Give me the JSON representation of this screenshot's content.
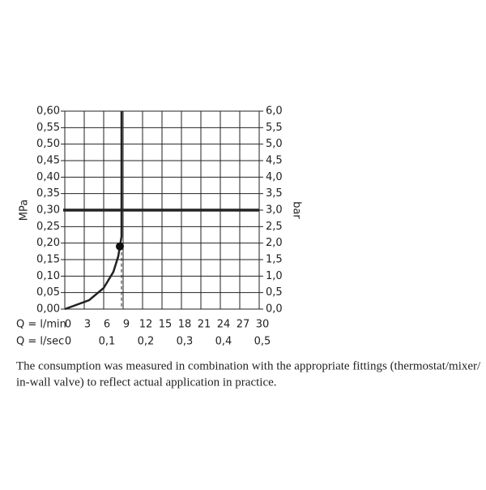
{
  "chart_data": {
    "type": "line",
    "y_label": "MPa",
    "y2_label": "bar",
    "x_label": "Q = l/min",
    "x2_label": "Q = l/sec",
    "xlim": [
      0,
      30
    ],
    "xticks": [
      0,
      3,
      6,
      9,
      12,
      15,
      18,
      21,
      24,
      27,
      30
    ],
    "x2lim": [
      0,
      0.5
    ],
    "x2ticks": [
      0,
      {
        "value": 0.1,
        "label": "0,1"
      },
      {
        "value": 0.2,
        "label": "0,2"
      },
      {
        "value": 0.3,
        "label": "0,3"
      },
      {
        "value": 0.4,
        "label": "0,4"
      },
      {
        "value": 0.5,
        "label": "0,5"
      }
    ],
    "ylim": [
      0,
      0.6
    ],
    "yticks": [
      {
        "value": 0,
        "label": "0,00"
      },
      {
        "value": 0.05,
        "label": "0,05"
      },
      {
        "value": 0.1,
        "label": "0,10"
      },
      {
        "value": 0.15,
        "label": "0,15"
      },
      {
        "value": 0.2,
        "label": "0,20"
      },
      {
        "value": 0.25,
        "label": "0,25"
      },
      {
        "value": 0.3,
        "label": "0,30"
      },
      {
        "value": 0.35,
        "label": "0,35"
      },
      {
        "value": 0.4,
        "label": "0,40"
      },
      {
        "value": 0.45,
        "label": "0,45"
      },
      {
        "value": 0.5,
        "label": "0,50"
      },
      {
        "value": 0.55,
        "label": "0,55"
      },
      {
        "value": 0.6,
        "label": "0,60"
      }
    ],
    "y2lim": [
      0,
      6
    ],
    "y2ticks": [
      {
        "value": 0,
        "label": "0,0"
      },
      {
        "value": 0.5,
        "label": "0,5"
      },
      {
        "value": 1,
        "label": "1,0"
      },
      {
        "value": 1.5,
        "label": "1,5"
      },
      {
        "value": 2,
        "label": "2,0"
      },
      {
        "value": 2.5,
        "label": "2,5"
      },
      {
        "value": 3,
        "label": "3,0"
      },
      {
        "value": 3.5,
        "label": "3,5"
      },
      {
        "value": 4,
        "label": "4,0"
      },
      {
        "value": 4.5,
        "label": "4,5"
      },
      {
        "value": 5,
        "label": "5,0"
      },
      {
        "value": 5.5,
        "label": "5,5"
      },
      {
        "value": 6,
        "label": "6,0"
      }
    ],
    "grid": true,
    "highlight_y": 0.3,
    "series": [
      {
        "color": "#222222",
        "x": [
          0,
          3.75,
          6,
          7.5,
          8.25,
          8.5,
          8.75,
          8.75
        ],
        "values": [
          0,
          0.027,
          0.064,
          0.113,
          0.16,
          0.19,
          0.22,
          0.6
        ]
      }
    ],
    "marker": {
      "x": 8.75,
      "y": 0.19
    }
  },
  "caption": [
    "The consumption was measured in combination with the appropriate fittings (thermostat/mixer/",
    "in-wall valve) to reflect actual application in practice."
  ]
}
